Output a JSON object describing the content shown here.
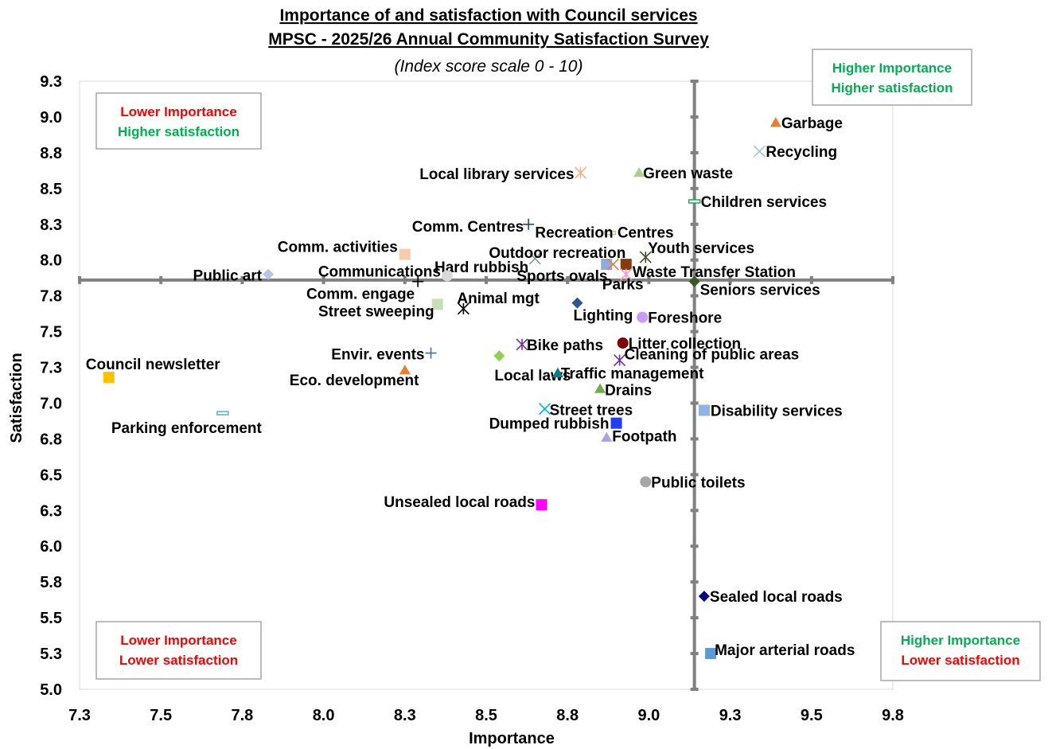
{
  "chart_data": {
    "type": "scatter",
    "title": "Importance of and satisfaction with Council services",
    "subtitle": "MPSC - 2025/26 Annual Community Satisfaction Survey",
    "note": "(Index score scale 0 - 10)",
    "xlabel": "Importance",
    "ylabel": "Satisfaction",
    "xlim": [
      7.25,
      9.75
    ],
    "ylim": [
      5.0,
      9.25
    ],
    "x_ticks": [
      "7.3",
      "7.5",
      "7.8",
      "8.0",
      "8.3",
      "8.5",
      "8.8",
      "9.0",
      "9.3",
      "9.5",
      "9.8"
    ],
    "y_ticks": [
      "5.0",
      "5.3",
      "5.5",
      "5.8",
      "6.0",
      "6.3",
      "6.5",
      "6.8",
      "7.0",
      "7.3",
      "7.5",
      "7.8",
      "8.0",
      "8.3",
      "8.5",
      "8.8",
      "9.0",
      "9.3"
    ],
    "x_ref": 9.14,
    "y_ref": 7.86,
    "grid": false,
    "quadrants": [
      {
        "line1": "Lower Importance",
        "line2": "Higher satisfaction",
        "color1": "#ff0000",
        "color2": "#00b050"
      },
      {
        "line1": "Higher Importance",
        "line2": "Higher satisfaction",
        "color1": "#00b050",
        "color2": "#00b050"
      },
      {
        "line1": "Lower Importance",
        "line2": "Lower satisfaction",
        "color1": "#ff0000",
        "color2": "#ff0000"
      },
      {
        "line1": "Higher Importance",
        "line2": "Lower satisfaction",
        "color1": "#00b050",
        "color2": "#ff0000"
      }
    ],
    "points": [
      {
        "label": "Garbage",
        "x": 9.39,
        "y": 8.96,
        "marker": "triangle",
        "color": "#ed7d31"
      },
      {
        "label": "Recycling",
        "x": 9.34,
        "y": 8.76,
        "marker": "x",
        "color": "#9dc3e6"
      },
      {
        "label": "Local library services",
        "x": 8.79,
        "y": 8.61,
        "marker": "asterisk",
        "color": "#f4b183"
      },
      {
        "label": "Green waste",
        "x": 8.97,
        "y": 8.61,
        "marker": "triangle",
        "color": "#a9d18e"
      },
      {
        "label": "Children services",
        "x": 9.14,
        "y": 8.41,
        "marker": "dash",
        "color": "#00b050"
      },
      {
        "label": "Comm. Centres",
        "x": 8.63,
        "y": 8.25,
        "marker": "plus",
        "color": "#1f4e79"
      },
      {
        "label": "Recreation Centres",
        "x": 8.88,
        "y": 8.19,
        "marker": "dash",
        "color": "#a9d18e"
      },
      {
        "label": "Comm. activities",
        "x": 8.25,
        "y": 8.04,
        "marker": "square",
        "color": "#f8cbad"
      },
      {
        "label": "Outdoor recreation",
        "x": 8.65,
        "y": 8.01,
        "marker": "x",
        "color": "#8497b0"
      },
      {
        "label": "Youth services",
        "x": 8.99,
        "y": 8.02,
        "marker": "asterisk",
        "color": "#375623"
      },
      {
        "label": "Hard rubbish",
        "x": 8.87,
        "y": 7.97,
        "marker": "square",
        "color": "#8faadc"
      },
      {
        "label": "Sports ovals",
        "x": 8.89,
        "y": 7.97,
        "marker": "x",
        "color": "#ed7d31"
      },
      {
        "label": "Waste Transfer Station",
        "x": 8.93,
        "y": 7.97,
        "marker": "square",
        "color": "#843c0c"
      },
      {
        "label": "Public art",
        "x": 7.83,
        "y": 7.9,
        "marker": "diamond",
        "color": "#b4c7e7"
      },
      {
        "label": "Communications",
        "x": 8.38,
        "y": 7.89,
        "marker": "circle",
        "color": "#d9d9d9"
      },
      {
        "label": "Parks",
        "x": 8.93,
        "y": 7.9,
        "marker": "asterisk",
        "color": "#ff99cc"
      },
      {
        "label": "Comm. engage",
        "x": 8.29,
        "y": 7.85,
        "marker": "plus",
        "color": "#000000"
      },
      {
        "label": "Seniors services",
        "x": 9.14,
        "y": 7.85,
        "marker": "diamond",
        "color": "#385723"
      },
      {
        "label": "Street sweeping",
        "x": 8.35,
        "y": 7.69,
        "marker": "square",
        "color": "#c5e0b4"
      },
      {
        "label": "Animal mgt",
        "x": 8.43,
        "y": 7.66,
        "marker": "asterisk",
        "color": "#000000"
      },
      {
        "label": "Lighting",
        "x": 8.78,
        "y": 7.7,
        "marker": "diamond",
        "color": "#2f5597"
      },
      {
        "label": "Foreshore",
        "x": 8.98,
        "y": 7.6,
        "marker": "circle",
        "color": "#cc99ff"
      },
      {
        "label": "Bike paths",
        "x": 8.61,
        "y": 7.41,
        "marker": "asterisk",
        "color": "#7030a0"
      },
      {
        "label": "Litter collection",
        "x": 8.92,
        "y": 7.42,
        "marker": "circle",
        "color": "#7f0000"
      },
      {
        "label": "Envir. events",
        "x": 8.33,
        "y": 7.35,
        "marker": "plus",
        "color": "#2e75b6"
      },
      {
        "label": "Local laws",
        "x": 8.54,
        "y": 7.33,
        "marker": "diamond",
        "color": "#92d050"
      },
      {
        "label": "Cleaning of public areas",
        "x": 8.91,
        "y": 7.3,
        "marker": "asterisk",
        "color": "#7030a0"
      },
      {
        "label": "Council newsletter",
        "x": 7.34,
        "y": 7.18,
        "marker": "square",
        "color": "#ffc000"
      },
      {
        "label": "Eco. development",
        "x": 8.25,
        "y": 7.23,
        "marker": "triangle",
        "color": "#ed7d31"
      },
      {
        "label": "Traffic management",
        "x": 8.72,
        "y": 7.21,
        "marker": "triangle",
        "color": "#00808c"
      },
      {
        "label": "Drains",
        "x": 8.85,
        "y": 7.1,
        "marker": "triangle",
        "color": "#70ad47"
      },
      {
        "label": "Parking enforcement",
        "x": 7.69,
        "y": 6.93,
        "marker": "dash",
        "color": "#4bacc6"
      },
      {
        "label": "Street trees",
        "x": 8.68,
        "y": 6.96,
        "marker": "x",
        "color": "#00b0f0"
      },
      {
        "label": "Disability services",
        "x": 9.17,
        "y": 6.95,
        "marker": "square",
        "color": "#8eb4e3"
      },
      {
        "label": "Dumped rubbish",
        "x": 8.9,
        "y": 6.86,
        "marker": "square",
        "color": "#1f3dff"
      },
      {
        "label": "Footpath",
        "x": 8.87,
        "y": 6.76,
        "marker": "triangle",
        "color": "#a4a4ef"
      },
      {
        "label": "Public toilets",
        "x": 8.99,
        "y": 6.45,
        "marker": "circle",
        "color": "#a6a6a6"
      },
      {
        "label": "Unsealed local roads",
        "x": 8.67,
        "y": 6.29,
        "marker": "square",
        "color": "#ff00ff"
      },
      {
        "label": "Sealed local roads",
        "x": 9.17,
        "y": 5.65,
        "marker": "diamond",
        "color": "#000080"
      },
      {
        "label": "Major arterial roads",
        "x": 9.19,
        "y": 5.25,
        "marker": "square",
        "color": "#5b9bd5"
      }
    ]
  }
}
